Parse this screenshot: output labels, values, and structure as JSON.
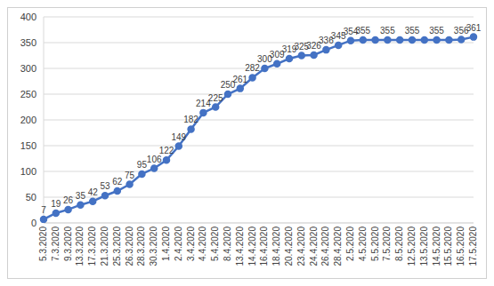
{
  "chart_data": {
    "type": "line",
    "categories": [
      "5.3.2020",
      "7.3.2020",
      "9.3.2020",
      "13.3.2020",
      "17.3.2020",
      "21.3.2020",
      "25.3.2020",
      "26.3.2020",
      "28.3.2020",
      "30.3.2020",
      "1.4.2020",
      "2.4.2020",
      "3.4.2020",
      "4.4.2020",
      "5.4.2020",
      "8.4.2020",
      "13.4.2020",
      "14.4.2020",
      "16.4.2020",
      "18.4.2020",
      "20.4.2020",
      "23.4.2020",
      "24.4.2020",
      "26.4.2020",
      "28.4.2020",
      "2.5.2020",
      "4.5.2020",
      "5.5.2020",
      "7.5.2020",
      "8.5.2020",
      "12.5.2020",
      "13.5.2020",
      "14.5.2020",
      "15.5.2020",
      "16.5.2020",
      "17.5.2020"
    ],
    "values": [
      7,
      19,
      26,
      35,
      42,
      53,
      62,
      75,
      95,
      106,
      122,
      149,
      182,
      214,
      225,
      250,
      261,
      282,
      300,
      309,
      319,
      325,
      326,
      336,
      345,
      354,
      355,
      355,
      355,
      355,
      355,
      355,
      355,
      355,
      356,
      361
    ],
    "value_labels": [
      "7",
      "19",
      "26",
      "35",
      "42",
      "53",
      "62",
      "75",
      "95",
      "106",
      "122",
      "149",
      "182",
      "214",
      "225",
      "250",
      "261",
      "282",
      "300",
      "309",
      "319",
      "325",
      "326",
      "336",
      "345",
      "354",
      "355",
      null,
      "355",
      null,
      "355",
      null,
      "355",
      null,
      "356",
      "361"
    ],
    "data_labels": true,
    "color": "#4472c4",
    "marker": "circle",
    "line_style": "solid",
    "ylim": [
      0,
      400
    ],
    "yticks": [
      0,
      50,
      100,
      150,
      200,
      250,
      300,
      350,
      400
    ],
    "grid": true
  }
}
